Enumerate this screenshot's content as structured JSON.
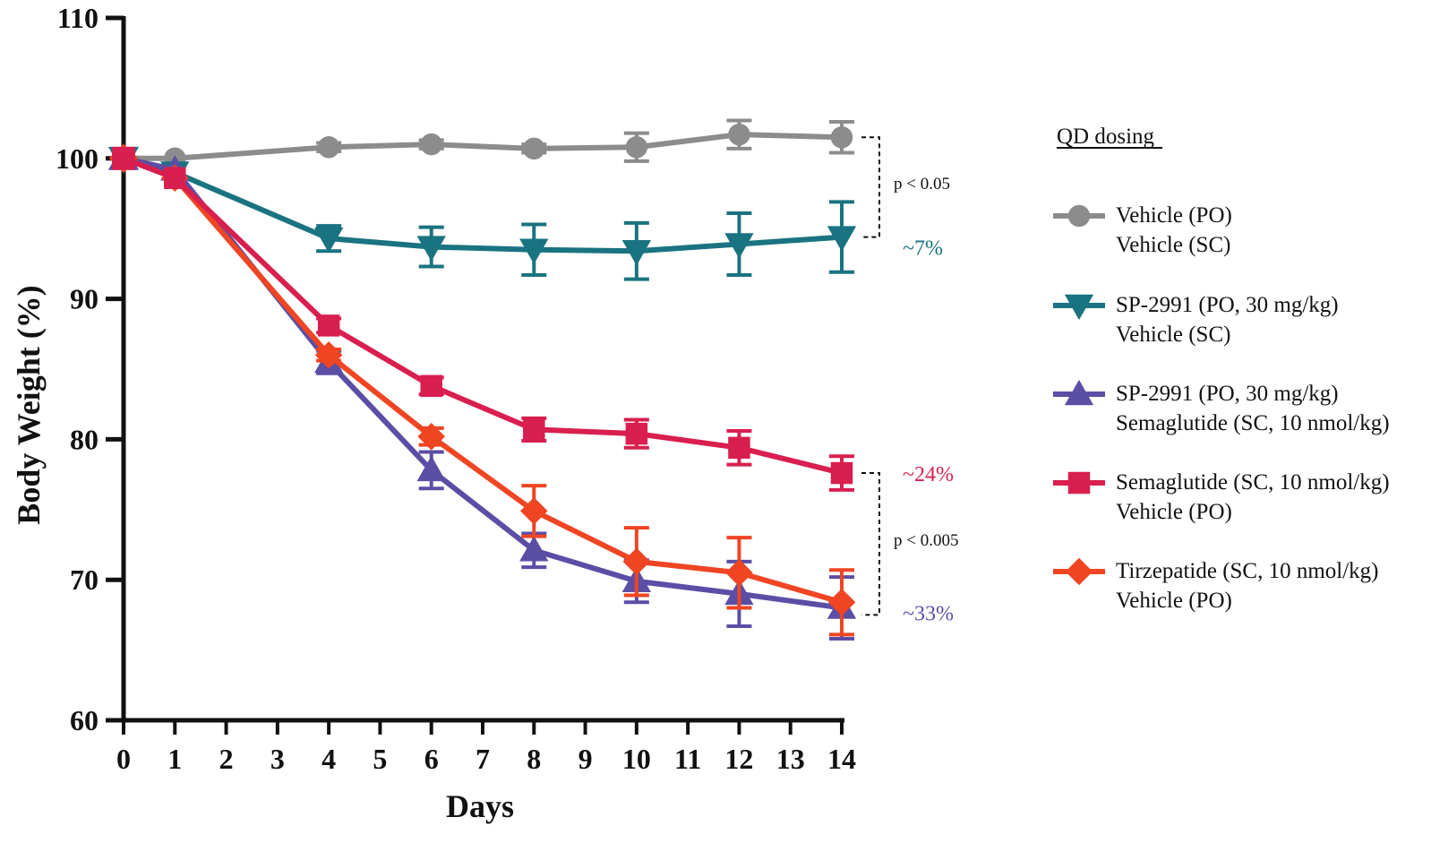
{
  "chart_data": {
    "type": "line",
    "title": "",
    "xlabel": "Days",
    "ylabel": "Body Weight (%)",
    "xlim": [
      0,
      14
    ],
    "ylim": [
      60,
      110
    ],
    "xticks": [
      0,
      1,
      2,
      3,
      4,
      5,
      6,
      7,
      8,
      9,
      10,
      11,
      12,
      13,
      14
    ],
    "yticks": [
      60,
      70,
      80,
      90,
      100,
      110
    ],
    "legend": {
      "title": "QD dosing",
      "position": "right"
    },
    "series": [
      {
        "name": "Vehicle (PO) / Vehicle (SC)",
        "legend_lines": [
          "Vehicle (PO)",
          "Vehicle (SC)"
        ],
        "color": "#8c8c8c",
        "marker": "circle",
        "x": [
          0,
          1,
          4,
          6,
          8,
          10,
          12,
          14
        ],
        "y": [
          100,
          100,
          100.8,
          101.0,
          100.7,
          100.8,
          101.7,
          101.5
        ],
        "err": [
          0,
          0,
          0.3,
          0.3,
          0.3,
          1.0,
          1.0,
          1.1
        ]
      },
      {
        "name": "SP-2991 (PO, 30 mg/kg) / Vehicle (SC)",
        "legend_lines": [
          "SP-2991 (PO, 30 mg/kg)",
          "Vehicle (SC)"
        ],
        "color": "#1a7380",
        "marker": "triangle-down",
        "x": [
          0,
          1,
          4,
          6,
          8,
          10,
          12,
          14
        ],
        "y": [
          100,
          99.0,
          94.3,
          93.7,
          93.5,
          93.4,
          93.9,
          94.4
        ],
        "err": [
          0,
          0,
          0.9,
          1.4,
          1.8,
          2.0,
          2.2,
          2.5
        ]
      },
      {
        "name": "SP-2991 (PO, 30 mg/kg) / Semaglutide (SC, 10 nmol/kg)",
        "legend_lines": [
          "SP-2991 (PO, 30 mg/kg)",
          "Semaglutide (SC, 10 nmol/kg)"
        ],
        "color": "#5b4ea5",
        "marker": "triangle-up",
        "x": [
          0,
          1,
          4,
          6,
          8,
          10,
          12,
          14
        ],
        "y": [
          100,
          99.2,
          85.5,
          77.8,
          72.1,
          69.9,
          69.0,
          68.0
        ],
        "err": [
          0,
          0,
          0.8,
          1.3,
          1.2,
          1.5,
          2.3,
          2.2
        ]
      },
      {
        "name": "Semaglutide (SC, 10 nmol/kg) / Vehicle (PO)",
        "legend_lines": [
          "Semaglutide (SC, 10 nmol/kg)",
          "Vehicle (PO)"
        ],
        "color": "#d81f4f",
        "marker": "square",
        "x": [
          0,
          1,
          4,
          6,
          8,
          10,
          12,
          14
        ],
        "y": [
          100,
          98.6,
          88.1,
          83.8,
          80.7,
          80.4,
          79.4,
          77.6
        ],
        "err": [
          0,
          0,
          0.5,
          0.6,
          0.8,
          1.0,
          1.2,
          1.2
        ]
      },
      {
        "name": "Tirzepatide (SC, 10 nmol/kg) / Vehicle (PO)",
        "legend_lines": [
          "Tirzepatide (SC, 10 nmol/kg)",
          "Vehicle (PO)"
        ],
        "color": "#ef4523",
        "marker": "diamond",
        "x": [
          0,
          1,
          4,
          6,
          8,
          10,
          12,
          14
        ],
        "y": [
          100,
          98.6,
          86.0,
          80.2,
          74.9,
          71.3,
          70.5,
          68.4
        ],
        "err": [
          0,
          0,
          0.4,
          0.6,
          1.8,
          2.4,
          2.5,
          2.3
        ]
      }
    ],
    "annotations": [
      {
        "text": "~7%",
        "at_y": 93.7,
        "color": "#1a7380"
      },
      {
        "text": "~24%",
        "at_y": 77.6,
        "color": "#d81f4f"
      },
      {
        "text": "~33%",
        "at_y": 67.7,
        "color": "#5b4ea5"
      }
    ],
    "significance": [
      {
        "text": "p < 0.05",
        "y_from": 101.5,
        "y_to": 94.4
      },
      {
        "text": "p < 0.005",
        "y_from": 77.6,
        "y_to": 67.5
      }
    ]
  }
}
